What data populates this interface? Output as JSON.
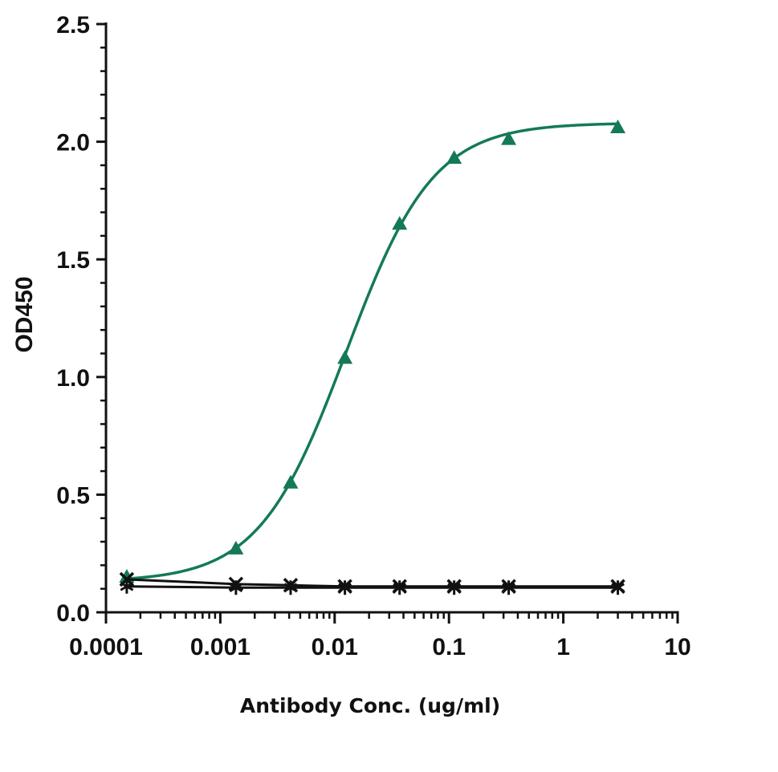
{
  "chart_data": {
    "type": "scatter",
    "title": "",
    "xlabel": "Antibody Conc. (ug/ml)",
    "ylabel": "OD450",
    "xscale": "log",
    "xlim": [
      0.0001,
      10
    ],
    "ylim": [
      0,
      2.5
    ],
    "x_ticks": [
      "0.0001",
      "0.001",
      "0.01",
      "0.1",
      "1",
      "10"
    ],
    "y_ticks": [
      "0.0",
      "0.5",
      "1.0",
      "1.5",
      "2.0",
      "2.5"
    ],
    "grid": false,
    "legend": "none",
    "series": [
      {
        "marker": "triangle",
        "color": "#147a55",
        "fit": "sigmoidal",
        "x": [
          0.000152,
          0.00137,
          0.00412,
          0.0123,
          0.037,
          0.111,
          0.333,
          3.0
        ],
        "y": [
          0.15,
          0.27,
          0.55,
          1.08,
          1.65,
          1.93,
          2.01,
          2.06
        ]
      },
      {
        "marker": "x",
        "color": "#111111",
        "x": [
          0.000152,
          0.00137,
          0.00412,
          0.0123,
          0.037,
          0.111,
          0.333,
          3.0
        ],
        "y": [
          0.14,
          0.12,
          0.115,
          0.11,
          0.11,
          0.11,
          0.11,
          0.11
        ]
      },
      {
        "marker": "asterisk",
        "color": "#111111",
        "x": [
          0.000152,
          0.00137,
          0.00412,
          0.0123,
          0.037,
          0.111,
          0.333,
          3.0
        ],
        "y": [
          0.11,
          0.105,
          0.105,
          0.105,
          0.105,
          0.105,
          0.105,
          0.105
        ]
      }
    ]
  }
}
